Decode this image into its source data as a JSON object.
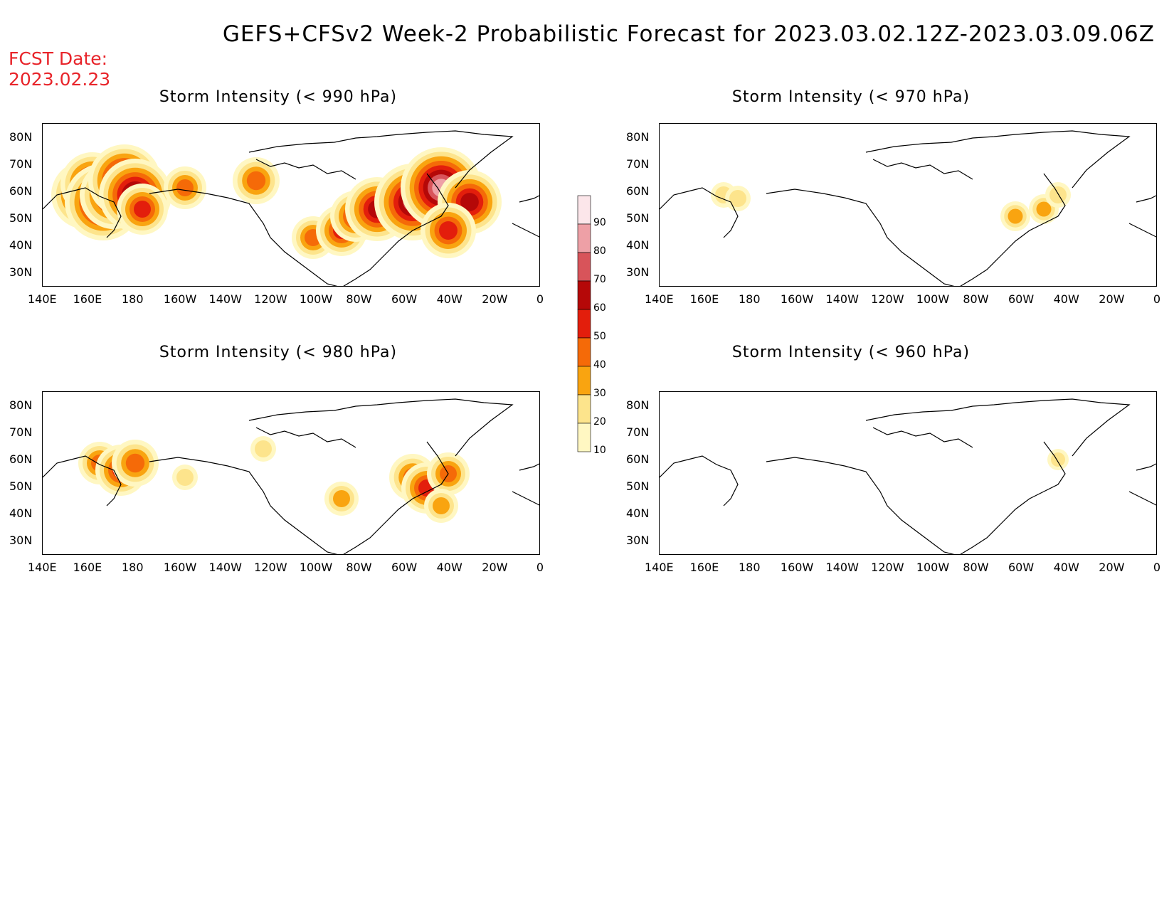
{
  "header": {
    "title": "GEFS+CFSv2 Week-2 Probabilistic Forecast for 2023.03.02.12Z-2023.03.09.06Z",
    "fcst_label": "FCST Date:",
    "fcst_date": "2023.02.23"
  },
  "panels": [
    {
      "title": "Storm Intensity (< 990 hPa)"
    },
    {
      "title": "Storm Intensity (< 970 hPa)"
    },
    {
      "title": "Storm Intensity (< 980 hPa)"
    },
    {
      "title": "Storm Intensity (< 960 hPa)"
    }
  ],
  "axes": {
    "x_ticks": [
      "140E",
      "160E",
      "180",
      "160W",
      "140W",
      "120W",
      "100W",
      "80W",
      "60W",
      "40W",
      "20W",
      "0"
    ],
    "y_ticks": [
      "80N",
      "70N",
      "60N",
      "50N",
      "40N",
      "30N"
    ]
  },
  "colorbar": {
    "levels": [
      "10",
      "20",
      "30",
      "40",
      "50",
      "60",
      "70",
      "80",
      "90"
    ],
    "colors": [
      "#fff7c2",
      "#fde48c",
      "#f9a410",
      "#f56a08",
      "#e31e0c",
      "#b50808",
      "#d8545a",
      "#eea0a6",
      "#fce6ea"
    ]
  }
}
